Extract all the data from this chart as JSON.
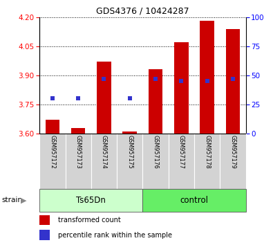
{
  "title": "GDS4376 / 10424287",
  "samples": [
    "GSM957172",
    "GSM957173",
    "GSM957174",
    "GSM957175",
    "GSM957176",
    "GSM957177",
    "GSM957178",
    "GSM957179"
  ],
  "groups": [
    "Ts65Dn",
    "Ts65Dn",
    "Ts65Dn",
    "Ts65Dn",
    "control",
    "control",
    "control",
    "control"
  ],
  "transformed_counts": [
    3.67,
    3.63,
    3.97,
    3.61,
    3.93,
    4.07,
    4.18,
    4.14
  ],
  "baseline": 3.6,
  "percentile_ranks_pct": [
    30,
    30,
    47,
    30,
    47,
    45,
    45,
    47
  ],
  "ylim_left": [
    3.6,
    4.2
  ],
  "ylim_right": [
    0,
    100
  ],
  "yticks_left": [
    3.6,
    3.75,
    3.9,
    4.05,
    4.2
  ],
  "yticks_right": [
    0,
    25,
    50,
    75,
    100
  ],
  "bar_color": "#cc0000",
  "dot_color": "#3333cc",
  "group_ts_color": "#ccffcc",
  "group_ct_color": "#66ee66",
  "legend_items": [
    {
      "label": "transformed count",
      "color": "#cc0000"
    },
    {
      "label": "percentile rank within the sample",
      "color": "#3333cc"
    }
  ],
  "strain_label": "strain"
}
